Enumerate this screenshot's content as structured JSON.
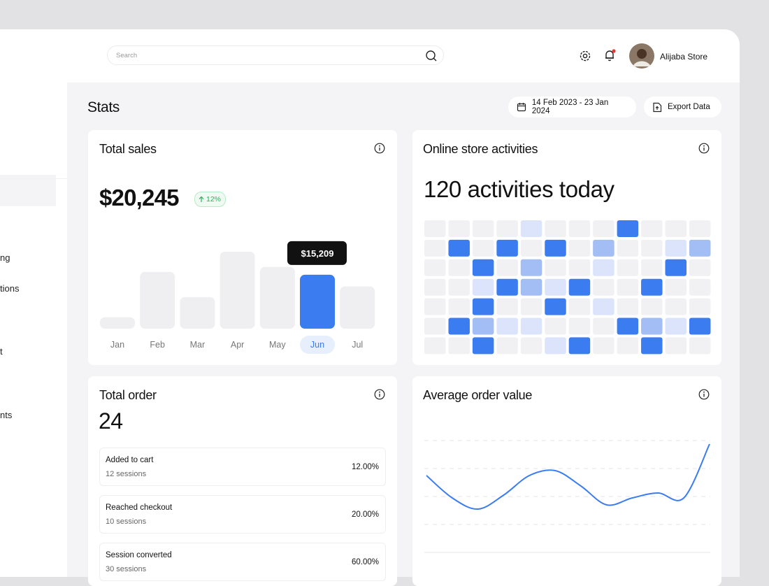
{
  "header": {
    "search_placeholder": "Search",
    "user_name": "Alijaba Store"
  },
  "sidebar": {
    "items": [
      "ng",
      "tions",
      "t",
      "nts"
    ]
  },
  "page": {
    "title": "Stats",
    "date_range": "14 Feb 2023 - 23 Jan 2024",
    "export_button": "Export Data"
  },
  "total_sales": {
    "title": "Total sales",
    "amount": "$20,245",
    "change": "12%",
    "chart": {
      "type": "bar",
      "categories": [
        "Jan",
        "Feb",
        "Mar",
        "Apr",
        "May",
        "Jun",
        "Jul"
      ],
      "values": [
        3200,
        16000,
        8900,
        21700,
        17400,
        15209,
        11900
      ],
      "highlight_index": 5,
      "tooltip": "$15,209",
      "color": "#3b7cf0",
      "base_color": "#efeff1"
    }
  },
  "activities": {
    "title": "Online store activities",
    "headline": "120 activities today",
    "heatmap": {
      "colors": [
        "#f1f1f3",
        "#dbe4fb",
        "#a3bdf5",
        "#3b7cf0"
      ],
      "rows": [
        [
          0,
          0,
          0,
          0,
          1,
          0,
          0,
          0,
          3,
          0,
          0,
          0
        ],
        [
          0,
          3,
          0,
          3,
          0,
          3,
          0,
          2,
          0,
          0,
          1,
          2
        ],
        [
          0,
          0,
          3,
          0,
          2,
          0,
          0,
          1,
          0,
          0,
          3,
          0
        ],
        [
          0,
          0,
          1,
          3,
          2,
          1,
          3,
          0,
          0,
          3,
          0,
          0
        ],
        [
          0,
          0,
          3,
          0,
          0,
          3,
          0,
          1,
          0,
          0,
          0,
          0
        ],
        [
          0,
          3,
          2,
          1,
          1,
          0,
          0,
          0,
          3,
          2,
          1,
          3
        ],
        [
          0,
          0,
          3,
          0,
          0,
          1,
          3,
          0,
          0,
          3,
          0,
          0
        ]
      ]
    }
  },
  "total_order": {
    "title": "Total order",
    "value": "24",
    "rows": [
      {
        "label": "Added to cart",
        "sessions": "12 sessions",
        "percent": "12.00%"
      },
      {
        "label": "Reached checkout",
        "sessions": "10 sessions",
        "percent": "20.00%"
      },
      {
        "label": "Session converted",
        "sessions": "30 sessions",
        "percent": "60.00%"
      }
    ]
  },
  "average_order": {
    "title": "Average order value",
    "chart": {
      "type": "line",
      "values": [
        110,
        78,
        62,
        82,
        110,
        117,
        95,
        68,
        78,
        85,
        78,
        155
      ],
      "color": "#3b7cf0"
    }
  }
}
